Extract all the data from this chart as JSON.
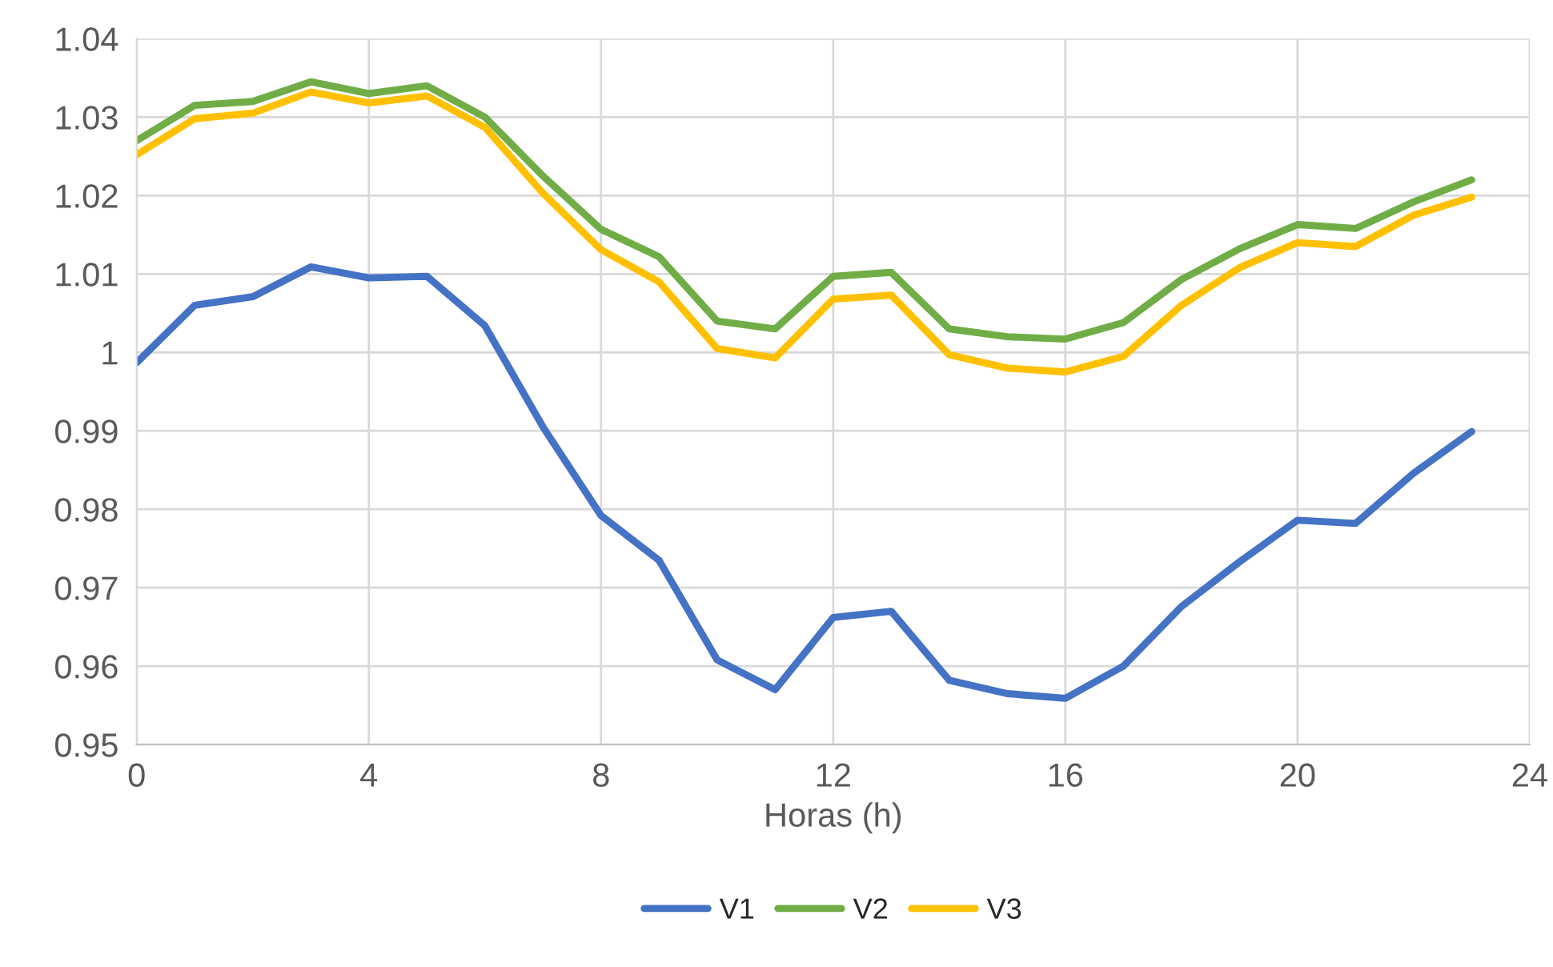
{
  "chart_data": {
    "type": "line",
    "xlabel": "Horas (h)",
    "x": [
      0,
      1,
      2,
      3,
      4,
      5,
      6,
      7,
      8,
      9,
      10,
      11,
      12,
      13,
      14,
      15,
      16,
      17,
      18,
      19,
      20,
      21,
      22,
      23
    ],
    "series": [
      {
        "name": "V1",
        "color": "#4472c4",
        "values": [
          0.9987,
          1.006,
          1.0071,
          1.0109,
          1.0095,
          1.0097,
          1.0034,
          0.9905,
          0.9792,
          0.9735,
          0.9608,
          0.957,
          0.9662,
          0.967,
          0.9582,
          0.9565,
          0.9559,
          0.96,
          0.9676,
          0.9733,
          0.9786,
          0.9782,
          0.9846,
          0.9899
        ]
      },
      {
        "name": "V2",
        "color": "#70ad47",
        "values": [
          1.027,
          1.0315,
          1.032,
          1.0345,
          1.033,
          1.034,
          1.03,
          1.0225,
          1.0157,
          1.0122,
          1.004,
          1.003,
          1.0097,
          1.0102,
          1.003,
          1.002,
          1.0017,
          1.0038,
          1.0093,
          1.0132,
          1.0163,
          1.0158,
          1.0192,
          1.022
        ]
      },
      {
        "name": "V3",
        "color": "#ffc000",
        "values": [
          1.0252,
          1.0298,
          1.0305,
          1.0332,
          1.0318,
          1.0327,
          1.0287,
          1.0203,
          1.0131,
          1.009,
          1.0005,
          0.9993,
          1.0068,
          1.0073,
          0.9997,
          0.998,
          0.9975,
          0.9995,
          1.006,
          1.0108,
          1.014,
          1.0135,
          1.0175,
          1.0198
        ]
      }
    ],
    "xlim": [
      0,
      24
    ],
    "xticks": [
      0,
      4,
      8,
      12,
      16,
      20,
      24
    ],
    "ylim": [
      0.95,
      1.04
    ],
    "yticks": [
      0.95,
      0.96,
      0.97,
      0.98,
      0.99,
      1,
      1.01,
      1.02,
      1.03,
      1.04
    ],
    "grid": true,
    "legend": "bottom",
    "marker": "none",
    "line_style": "solid"
  }
}
